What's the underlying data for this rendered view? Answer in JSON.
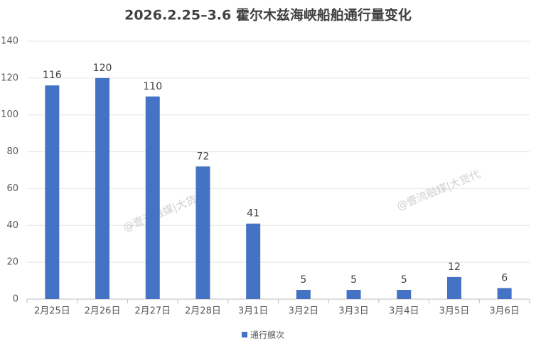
{
  "chart_data": {
    "type": "bar",
    "title": "2026.2.25–3.6 霍尔木兹海峡船舶通行量变化",
    "categories": [
      "2月25日",
      "2月26日",
      "2月27日",
      "2月28日",
      "3月1日",
      "3月2日",
      "3月3日",
      "3月4日",
      "3月5日",
      "3月6日"
    ],
    "series": [
      {
        "name": "通行艘次",
        "color": "#4472c4",
        "values": [
          116,
          120,
          110,
          72,
          41,
          5,
          5,
          5,
          12,
          6
        ]
      }
    ],
    "ylim": [
      0,
      140
    ],
    "yticks": [
      0,
      20,
      40,
      60,
      80,
      100,
      120,
      140
    ],
    "grid": true,
    "legend": "bottom",
    "watermarks": [
      "@壹流融媒|大货代",
      "@壹流融媒|大货代"
    ]
  }
}
